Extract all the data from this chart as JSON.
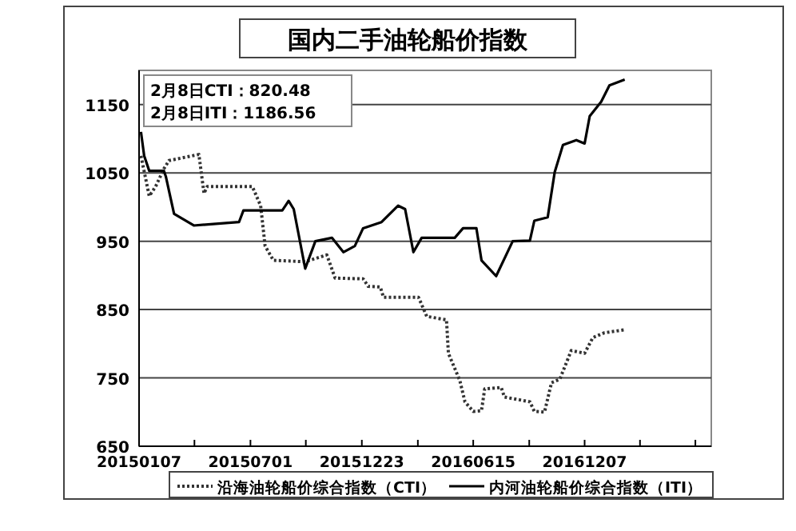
{
  "chart_data": {
    "type": "line",
    "title": "国内二手油轮船价指数",
    "xlim": [
      "2015-01-07",
      "2017-06-24"
    ],
    "xticks": [
      {
        "value": "2015-01-07",
        "label": "20150107"
      },
      {
        "value": "2015-04-04",
        "label": null
      },
      {
        "value": "2015-07-01",
        "label": "20150701"
      },
      {
        "value": "2015-09-26",
        "label": null
      },
      {
        "value": "2015-12-23",
        "label": "20151223"
      },
      {
        "value": "2016-03-20",
        "label": null
      },
      {
        "value": "2016-06-15",
        "label": "20160615"
      },
      {
        "value": "2016-09-11",
        "label": null
      },
      {
        "value": "2016-12-07",
        "label": "20161207"
      },
      {
        "value": "2017-03-04",
        "label": null
      },
      {
        "value": "2017-05-30",
        "label": null
      }
    ],
    "ylim": [
      650,
      1200
    ],
    "yticks": [
      650,
      750,
      850,
      950,
      1050,
      1150
    ],
    "grid": "y",
    "legend": "bottom",
    "annotations": [
      "2月8日CTI：820.48",
      "2月8日ITI：1186.56"
    ],
    "series": [
      {
        "name": "沿海油轮船价综合指数（CTI）",
        "color": "#333333",
        "line_style": "dotted",
        "x": [
          "2015-01-10",
          "2015-01-23",
          "2015-02-02",
          "2015-02-15",
          "2015-02-23",
          "2015-04-11",
          "2015-04-19",
          "2015-04-24",
          "2015-07-04",
          "2015-07-17",
          "2015-07-24",
          "2015-08-06",
          "2015-09-25",
          "2015-10-29",
          "2015-11-11",
          "2015-12-25",
          "2016-01-02",
          "2016-01-21",
          "2016-01-26",
          "2016-03-21",
          "2016-04-03",
          "2016-05-04",
          "2016-05-07",
          "2016-05-25",
          "2016-06-02",
          "2016-06-15",
          "2016-06-28",
          "2016-07-03",
          "2016-07-29",
          "2016-08-03",
          "2016-09-12",
          "2016-09-19",
          "2016-10-05",
          "2016-10-16",
          "2016-10-29",
          "2016-11-16",
          "2016-12-07",
          "2016-12-20",
          "2017-01-07",
          "2017-02-08"
        ],
        "values": [
          1075,
          1016,
          1030,
          1056,
          1068,
          1077,
          1020,
          1030,
          1030,
          1002,
          943,
          922,
          920,
          930,
          896,
          895,
          884,
          883,
          868,
          868,
          840,
          835,
          786,
          746,
          715,
          701,
          702,
          734,
          736,
          722,
          715,
          701,
          700,
          743,
          748,
          790,
          786,
          809,
          816,
          820.48
        ]
      },
      {
        "name": "内河油轮船价综合指数（ITI）",
        "color": "#000000",
        "line_style": "solid",
        "x": [
          "2015-01-10",
          "2015-01-15",
          "2015-01-23",
          "2015-02-15",
          "2015-02-18",
          "2015-03-03",
          "2015-04-03",
          "2015-06-13",
          "2015-06-20",
          "2015-08-20",
          "2015-08-30",
          "2015-09-07",
          "2015-09-25",
          "2015-10-11",
          "2015-11-06",
          "2015-11-24",
          "2015-12-12",
          "2015-12-25",
          "2016-01-23",
          "2016-02-18",
          "2016-02-29",
          "2016-03-13",
          "2016-03-26",
          "2016-05-17",
          "2016-05-30",
          "2016-06-20",
          "2016-06-28",
          "2016-07-21",
          "2016-08-16",
          "2016-09-12",
          "2016-09-19",
          "2016-10-10",
          "2016-10-21",
          "2016-11-03",
          "2016-11-24",
          "2016-12-07",
          "2016-12-15",
          "2017-01-02",
          "2017-01-15",
          "2017-02-08"
        ],
        "values": [
          1110,
          1075,
          1053,
          1053,
          1045,
          990,
          973,
          978,
          995,
          995,
          1009,
          997,
          910,
          950,
          955,
          934,
          943,
          969,
          978,
          1002,
          997,
          934,
          955,
          955,
          969,
          969,
          922,
          899,
          950,
          951,
          980,
          985,
          1051,
          1091,
          1098,
          1093,
          1133,
          1154,
          1178,
          1186.56
        ]
      }
    ]
  }
}
